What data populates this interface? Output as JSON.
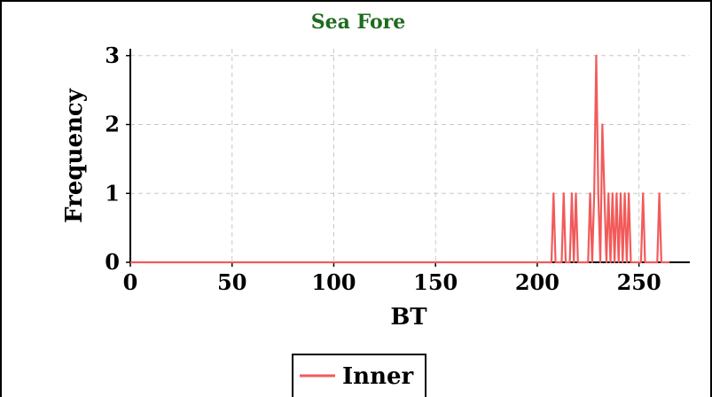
{
  "chart_data": {
    "type": "line",
    "title": "Sea Fore",
    "xlabel": "BT",
    "ylabel": "Frequency",
    "xlim": [
      0,
      275
    ],
    "ylim": [
      0,
      3.1
    ],
    "x_ticks": [
      0,
      50,
      100,
      150,
      200,
      250
    ],
    "y_ticks": [
      0,
      1,
      2,
      3
    ],
    "grid": true,
    "legend_position": "bottom",
    "series": [
      {
        "name": "Inner",
        "color": "#f25a5a",
        "points": [
          [
            0,
            0
          ],
          [
            207,
            0
          ],
          [
            208,
            1
          ],
          [
            209,
            0
          ],
          [
            212,
            0
          ],
          [
            213,
            1
          ],
          [
            214,
            0
          ],
          [
            216,
            0
          ],
          [
            217,
            1
          ],
          [
            218,
            0
          ],
          [
            219,
            1
          ],
          [
            220,
            0
          ],
          [
            225,
            0
          ],
          [
            226,
            1
          ],
          [
            227,
            0
          ],
          [
            228,
            1
          ],
          [
            229,
            3
          ],
          [
            230,
            1
          ],
          [
            231,
            0
          ],
          [
            232,
            2
          ],
          [
            233,
            1
          ],
          [
            234,
            0
          ],
          [
            235,
            1
          ],
          [
            236,
            0
          ],
          [
            237,
            1
          ],
          [
            238,
            0
          ],
          [
            239,
            1
          ],
          [
            240,
            0
          ],
          [
            241,
            1
          ],
          [
            242,
            0
          ],
          [
            243,
            1
          ],
          [
            244,
            0
          ],
          [
            245,
            1
          ],
          [
            246,
            0
          ],
          [
            251,
            0
          ],
          [
            252,
            1
          ],
          [
            253,
            0
          ],
          [
            259,
            0
          ],
          [
            260,
            1
          ],
          [
            261,
            0
          ],
          [
            265,
            0
          ]
        ]
      }
    ]
  }
}
